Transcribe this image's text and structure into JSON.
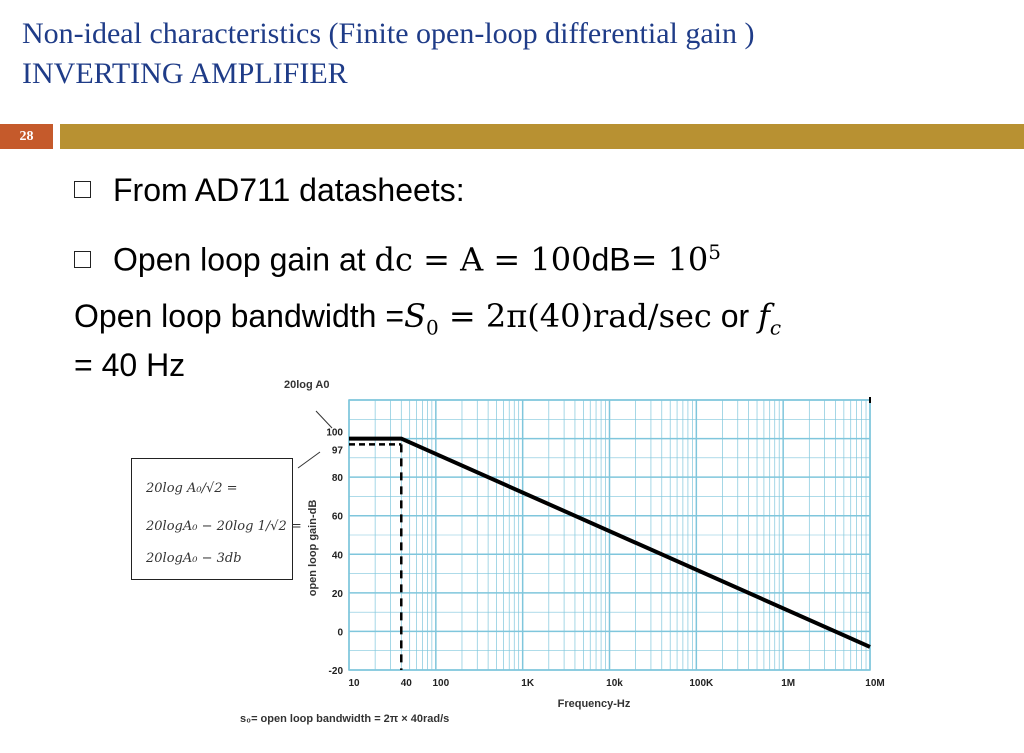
{
  "slide": {
    "title_line1": "Non-ideal characteristics (Finite open-loop differential gain )",
    "title_line2": "INVERTING AMPLIFIER",
    "number": "28"
  },
  "bullets": [
    {
      "text": "From AD711 datasheets:"
    },
    {
      "text": "Open loop gain at ",
      "math": "dc = A = 100",
      "unit": "dB",
      "math2": "= 10",
      "exp": "5"
    }
  ],
  "bandwidth": {
    "text": "Open loop bandwidth =",
    "math": "S",
    "sub": "0",
    "math2": " = 2π(40)rad/sec",
    "or": " or ",
    "math3": "f",
    "sub2": "c",
    "line2": "= 40 Hz"
  },
  "formula": {
    "line1": "20log A₀/√2 =",
    "line2": "20logA₀ − 20log 1/√2 =",
    "line3": "20logA₀ − 3db"
  },
  "chart_data": {
    "type": "line",
    "title": "20log A0",
    "xlabel": "Frequency-Hz",
    "ylabel": "open loop gain-dB",
    "xscale": "log",
    "x_ticks": [
      "10",
      "40",
      "100",
      "1K",
      "10k",
      "100K",
      "1M",
      "10M"
    ],
    "y_ticks": [
      "-20",
      "0",
      "20",
      "40",
      "60",
      "80",
      "97",
      "100"
    ],
    "ylim": [
      -20,
      120
    ],
    "xlim": [
      10,
      10000000
    ],
    "series": [
      {
        "x": [
          10,
          40,
          10000000
        ],
        "y": [
          100,
          100,
          -8
        ]
      }
    ],
    "annotations": {
      "dashed_level": 97,
      "dashed_freq": 40,
      "bottom_label": "s₀= open loop bandwidth = 2π × 40rad/s"
    }
  },
  "colors": {
    "title": "#1f3c88",
    "slide_number_bg": "#c55a2b",
    "rule": "#b89132",
    "grid": "#7fc6dc"
  }
}
